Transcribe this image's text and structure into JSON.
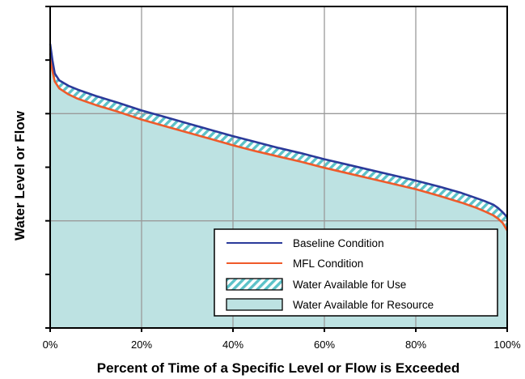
{
  "chart_data": {
    "type": "area",
    "xlabel": "Percent of Time of a Specific Level or Flow is Exceeded",
    "ylabel": "Water Level or Flow",
    "xlim": [
      0,
      100
    ],
    "ylim": [
      0,
      6
    ],
    "x_ticks": [
      "0%",
      "20%",
      "40%",
      "60%",
      "80%",
      "100%"
    ],
    "y_tick_values_unlabeled": [
      0,
      1,
      2,
      3,
      4,
      5,
      6
    ],
    "grid": true,
    "legend_position": "bottom-right",
    "x": [
      0,
      0.5,
      1,
      2,
      4,
      6,
      10,
      15,
      20,
      25,
      30,
      35,
      40,
      45,
      50,
      55,
      60,
      65,
      70,
      75,
      80,
      85,
      90,
      93,
      95,
      97,
      98,
      99,
      100
    ],
    "series": [
      {
        "name": "Baseline Condition",
        "color": "#2b3a9a",
        "values": [
          5.3,
          5.0,
          4.75,
          4.62,
          4.52,
          4.45,
          4.33,
          4.2,
          4.06,
          3.94,
          3.82,
          3.7,
          3.58,
          3.47,
          3.36,
          3.26,
          3.15,
          3.05,
          2.95,
          2.85,
          2.75,
          2.64,
          2.52,
          2.43,
          2.37,
          2.3,
          2.24,
          2.16,
          2.07
        ]
      },
      {
        "name": "MFL Condition",
        "color": "#ef5a2a",
        "values": [
          5.12,
          4.8,
          4.6,
          4.47,
          4.36,
          4.28,
          4.16,
          4.03,
          3.89,
          3.77,
          3.65,
          3.53,
          3.41,
          3.3,
          3.2,
          3.1,
          2.99,
          2.89,
          2.79,
          2.69,
          2.59,
          2.47,
          2.34,
          2.25,
          2.18,
          2.1,
          2.04,
          1.96,
          1.82
        ]
      }
    ],
    "fill_regions": [
      {
        "name": "Water Available for Use",
        "between": [
          "MFL Condition",
          "Baseline Condition"
        ],
        "pattern": "diagonal-hatch",
        "color": "#5cc2c8"
      },
      {
        "name": "Water Available for Resource",
        "below": "MFL Condition",
        "color": "#bde2e2"
      }
    ],
    "legend": [
      {
        "label": "Baseline Condition",
        "kind": "line",
        "color": "#2b3a9a"
      },
      {
        "label": "MFL Condition",
        "kind": "line",
        "color": "#ef5a2a"
      },
      {
        "label": "Water Available for Use",
        "kind": "hatch-box",
        "color": "#5cc2c8"
      },
      {
        "label": "Water Available for Resource",
        "kind": "box",
        "color": "#bde2e2"
      }
    ]
  }
}
